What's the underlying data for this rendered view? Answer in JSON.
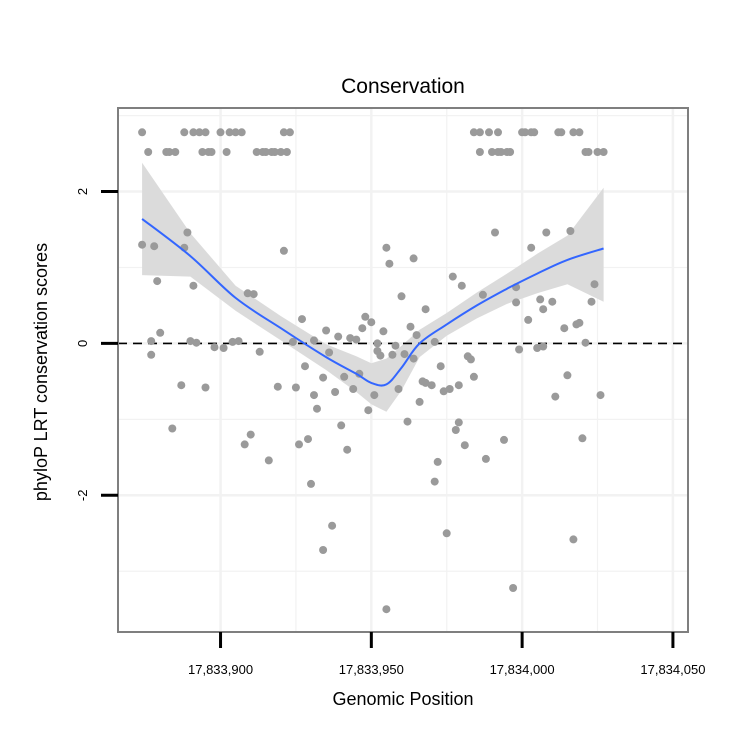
{
  "chart_data": {
    "type": "scatter",
    "title": "Conservation",
    "xlabel": "Genomic Position",
    "ylabel": "phyloP LRT conservation scores",
    "xlim": [
      17833866,
      17834055
    ],
    "ylim": [
      -3.8,
      3.1
    ],
    "x_ticks": [
      17833900,
      17833950,
      17834000,
      17834050
    ],
    "x_tick_labels": [
      "17,833,900",
      "17,833,950",
      "17,834,000",
      "17,834,050"
    ],
    "y_ticks": [
      -2,
      0,
      2
    ],
    "y_tick_labels": [
      "-2",
      "0",
      "2"
    ],
    "reference_line": {
      "y": 0,
      "style": "dashed"
    },
    "colors": {
      "points": "#9a9a9a",
      "smooth": "#3366ff",
      "band": "#d9d9d9",
      "panel_border": "#7f7f7f",
      "grid": "#f2f2f2"
    },
    "grid": true,
    "points": [
      [
        17833874,
        2.78
      ],
      [
        17833874,
        1.3
      ],
      [
        17833876,
        2.52
      ],
      [
        17833877,
        -0.15
      ],
      [
        17833877,
        0.03
      ],
      [
        17833878,
        1.28
      ],
      [
        17833879,
        0.82
      ],
      [
        17833880,
        0.14
      ],
      [
        17833882,
        2.52
      ],
      [
        17833883,
        2.52
      ],
      [
        17833884,
        -1.12
      ],
      [
        17833885,
        2.52
      ],
      [
        17833887,
        -0.55
      ],
      [
        17833888,
        1.26
      ],
      [
        17833888,
        2.78
      ],
      [
        17833889,
        1.46
      ],
      [
        17833890,
        0.03
      ],
      [
        17833891,
        0.76
      ],
      [
        17833891,
        2.78
      ],
      [
        17833892,
        0.01
      ],
      [
        17833893,
        2.78
      ],
      [
        17833894,
        2.52
      ],
      [
        17833895,
        2.78
      ],
      [
        17833895,
        -0.58
      ],
      [
        17833896,
        2.52
      ],
      [
        17833897,
        2.52
      ],
      [
        17833898,
        -0.05
      ],
      [
        17833900,
        2.78
      ],
      [
        17833901,
        -0.06
      ],
      [
        17833902,
        2.52
      ],
      [
        17833903,
        2.78
      ],
      [
        17833904,
        0.02
      ],
      [
        17833905,
        2.78
      ],
      [
        17833906,
        0.03
      ],
      [
        17833907,
        2.78
      ],
      [
        17833908,
        -1.33
      ],
      [
        17833909,
        0.66
      ],
      [
        17833910,
        -1.2
      ],
      [
        17833911,
        0.65
      ],
      [
        17833912,
        2.52
      ],
      [
        17833913,
        -0.11
      ],
      [
        17833914,
        2.52
      ],
      [
        17833915,
        2.52
      ],
      [
        17833916,
        -1.54
      ],
      [
        17833917,
        2.52
      ],
      [
        17833918,
        2.52
      ],
      [
        17833919,
        -0.57
      ],
      [
        17833920,
        2.52
      ],
      [
        17833921,
        2.78
      ],
      [
        17833921,
        1.22
      ],
      [
        17833922,
        2.52
      ],
      [
        17833923,
        2.78
      ],
      [
        17833924,
        0.02
      ],
      [
        17833925,
        -0.58
      ],
      [
        17833926,
        -1.33
      ],
      [
        17833927,
        0.32
      ],
      [
        17833928,
        -0.3
      ],
      [
        17833929,
        -1.26
      ],
      [
        17833930,
        -1.85
      ],
      [
        17833931,
        -0.68
      ],
      [
        17833931,
        0.04
      ],
      [
        17833932,
        -0.86
      ],
      [
        17833934,
        -2.72
      ],
      [
        17833934,
        -0.45
      ],
      [
        17833935,
        0.17
      ],
      [
        17833936,
        -0.12
      ],
      [
        17833937,
        -2.4
      ],
      [
        17833938,
        -0.64
      ],
      [
        17833939,
        0.09
      ],
      [
        17833940,
        -1.08
      ],
      [
        17833941,
        -0.44
      ],
      [
        17833942,
        -1.4
      ],
      [
        17833943,
        0.07
      ],
      [
        17833944,
        -0.6
      ],
      [
        17833945,
        0.05
      ],
      [
        17833946,
        -0.4
      ],
      [
        17833947,
        0.2
      ],
      [
        17833948,
        0.35
      ],
      [
        17833949,
        -0.88
      ],
      [
        17833950,
        0.28
      ],
      [
        17833951,
        -0.68
      ],
      [
        17833952,
        -0.1
      ],
      [
        17833952,
        0.0
      ],
      [
        17833953,
        -0.16
      ],
      [
        17833954,
        0.16
      ],
      [
        17833955,
        -3.5
      ],
      [
        17833955,
        1.26
      ],
      [
        17833956,
        1.05
      ],
      [
        17833957,
        -0.15
      ],
      [
        17833958,
        -0.03
      ],
      [
        17833959,
        -0.6
      ],
      [
        17833960,
        0.62
      ],
      [
        17833961,
        -0.14
      ],
      [
        17833962,
        -1.03
      ],
      [
        17833963,
        0.22
      ],
      [
        17833964,
        1.12
      ],
      [
        17833964,
        -0.2
      ],
      [
        17833965,
        0.11
      ],
      [
        17833966,
        -0.77
      ],
      [
        17833967,
        -0.5
      ],
      [
        17833968,
        0.45
      ],
      [
        17833968,
        -0.52
      ],
      [
        17833970,
        -0.55
      ],
      [
        17833971,
        -1.82
      ],
      [
        17833971,
        0.02
      ],
      [
        17833972,
        -1.56
      ],
      [
        17833973,
        -0.3
      ],
      [
        17833974,
        -0.63
      ],
      [
        17833975,
        -2.5
      ],
      [
        17833976,
        -0.6
      ],
      [
        17833977,
        0.88
      ],
      [
        17833978,
        -1.14
      ],
      [
        17833979,
        -0.55
      ],
      [
        17833979,
        -1.04
      ],
      [
        17833980,
        0.76
      ],
      [
        17833981,
        -1.34
      ],
      [
        17833982,
        -0.17
      ],
      [
        17833983,
        -0.21
      ],
      [
        17833984,
        -0.44
      ],
      [
        17833984,
        2.78
      ],
      [
        17833986,
        2.52
      ],
      [
        17833986,
        2.78
      ],
      [
        17833987,
        0.64
      ],
      [
        17833988,
        -1.52
      ],
      [
        17833989,
        2.78
      ],
      [
        17833990,
        2.52
      ],
      [
        17833991,
        1.46
      ],
      [
        17833992,
        2.78
      ],
      [
        17833992,
        2.52
      ],
      [
        17833993,
        2.52
      ],
      [
        17833994,
        -1.27
      ],
      [
        17833995,
        2.52
      ],
      [
        17833996,
        2.52
      ],
      [
        17833997,
        -3.22
      ],
      [
        17833998,
        0.54
      ],
      [
        17833998,
        0.74
      ],
      [
        17833999,
        -0.08
      ],
      [
        17834000,
        2.78
      ],
      [
        17834001,
        2.78
      ],
      [
        17834002,
        0.31
      ],
      [
        17834003,
        1.26
      ],
      [
        17834003,
        2.78
      ],
      [
        17834004,
        2.78
      ],
      [
        17834005,
        -0.06
      ],
      [
        17834006,
        0.58
      ],
      [
        17834007,
        0.45
      ],
      [
        17834007,
        -0.04
      ],
      [
        17834008,
        1.46
      ],
      [
        17834010,
        0.55
      ],
      [
        17834011,
        -0.7
      ],
      [
        17834012,
        2.78
      ],
      [
        17834013,
        2.78
      ],
      [
        17834014,
        0.2
      ],
      [
        17834015,
        -0.42
      ],
      [
        17834016,
        1.48
      ],
      [
        17834017,
        -2.58
      ],
      [
        17834017,
        2.78
      ],
      [
        17834018,
        0.25
      ],
      [
        17834019,
        0.27
      ],
      [
        17834019,
        2.78
      ],
      [
        17834020,
        -1.25
      ],
      [
        17834021,
        2.52
      ],
      [
        17834021,
        0.01
      ],
      [
        17834022,
        2.52
      ],
      [
        17834023,
        0.55
      ],
      [
        17834024,
        0.78
      ],
      [
        17834025,
        2.52
      ],
      [
        17834026,
        -0.68
      ],
      [
        17834027,
        2.52
      ]
    ],
    "smooth": {
      "x": [
        17833874,
        17833890,
        17833905,
        17833920,
        17833935,
        17833945,
        17833950,
        17833955,
        17833960,
        17833966,
        17833975,
        17833985,
        17833995,
        17834005,
        17834015,
        17834027
      ],
      "y": [
        1.64,
        1.15,
        0.6,
        0.2,
        -0.18,
        -0.4,
        -0.52,
        -0.54,
        -0.32,
        0.0,
        0.25,
        0.5,
        0.72,
        0.92,
        1.1,
        1.25
      ],
      "lower": [
        0.9,
        0.88,
        0.43,
        0.04,
        -0.35,
        -0.64,
        -0.8,
        -0.9,
        -0.62,
        -0.18,
        0.1,
        0.33,
        0.52,
        0.66,
        0.78,
        0.55
      ],
      "upper": [
        2.38,
        1.45,
        0.76,
        0.36,
        -0.01,
        -0.17,
        -0.26,
        -0.2,
        -0.03,
        0.18,
        0.4,
        0.67,
        0.92,
        1.18,
        1.42,
        2.05
      ]
    }
  }
}
